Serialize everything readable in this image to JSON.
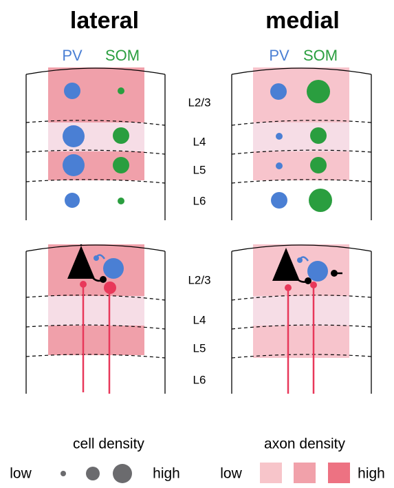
{
  "titles": [
    "lateral",
    "medial"
  ],
  "column_labels": [
    [
      "PV",
      "SOM"
    ],
    [
      "PV",
      "SOM"
    ]
  ],
  "layer_labels": {
    "top": [
      "L2/3",
      "L4",
      "L5",
      "L6"
    ],
    "bottom": [
      "L2/3",
      "L4",
      "L5",
      "L6"
    ]
  },
  "legend": {
    "cell_density": {
      "title": "cell density",
      "low": "low",
      "high": "high"
    },
    "axon_density": {
      "title": "axon density",
      "low": "low",
      "high": "high"
    }
  }
}
